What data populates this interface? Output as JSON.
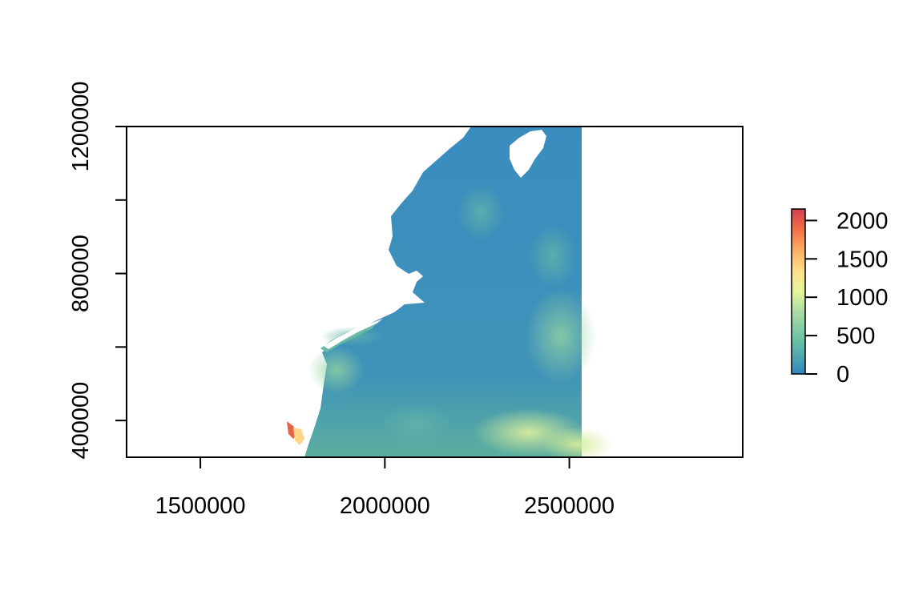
{
  "chart_data": {
    "type": "heatmap",
    "title": "",
    "xlabel": "",
    "ylabel": "",
    "xlim": [
      1300000,
      2970000
    ],
    "ylim": [
      300000,
      1200000
    ],
    "x_ticks": [
      {
        "value": 1500000,
        "label": "1500000"
      },
      {
        "value": 2000000,
        "label": "2000000"
      },
      {
        "value": 2500000,
        "label": "2500000"
      }
    ],
    "y_ticks": [
      {
        "value": 400000,
        "label": "400000"
      },
      {
        "value": 600000,
        "label": ""
      },
      {
        "value": 800000,
        "label": "800000"
      },
      {
        "value": 1000000,
        "label": ""
      },
      {
        "value": 1200000,
        "label": "1200000"
      }
    ],
    "legend": {
      "placement": "right",
      "range": [
        0,
        2150
      ],
      "ticks": [
        {
          "value": 0,
          "label": "0"
        },
        {
          "value": 500,
          "label": "500"
        },
        {
          "value": 1000,
          "label": "1000"
        },
        {
          "value": 1500,
          "label": "1500"
        },
        {
          "value": 2000,
          "label": "2000"
        }
      ],
      "palette": [
        "#3288bd",
        "#66c2a5",
        "#abdda4",
        "#e6f598",
        "#fee08b",
        "#fdae61",
        "#f46d43",
        "#d53e4f"
      ]
    },
    "grid": false,
    "raster_extent": {
      "x": [
        1780000,
        2550000
      ],
      "y": [
        300000,
        1200000
      ]
    },
    "notes": "Continuous raster surface over the ocean; land masked white"
  }
}
